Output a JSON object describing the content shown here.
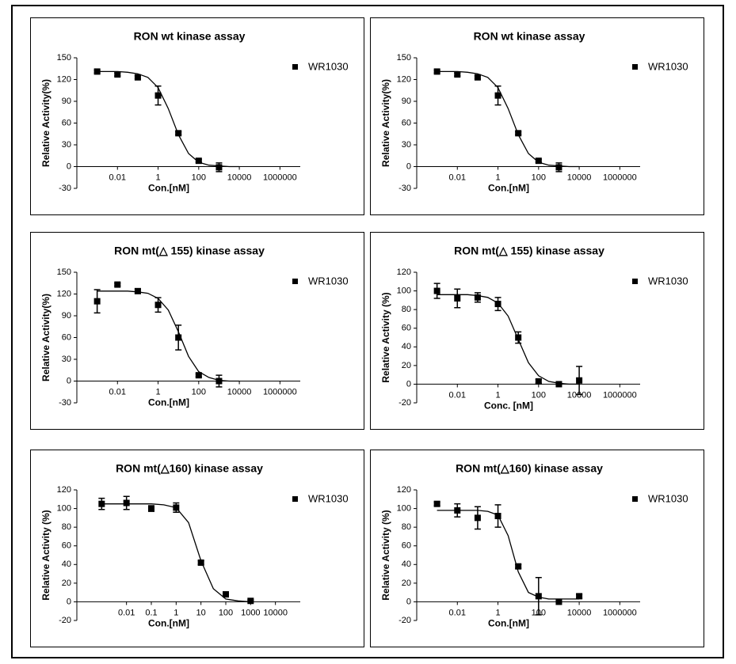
{
  "chart_data": [
    {
      "type": "scatter",
      "title": "RON wt kinase assay",
      "x_label": "Con.[nM]",
      "y_label": "Relative Activity(%)",
      "xscale": "log",
      "xlim": [
        0.0001,
        10000000
      ],
      "xticks": [
        0.01,
        1,
        100,
        10000,
        1000000
      ],
      "ylim": [
        -30,
        150
      ],
      "yticks": [
        -30,
        0,
        30,
        60,
        90,
        120,
        150
      ],
      "x": [
        0.001,
        0.01,
        0.1,
        1,
        10,
        100,
        1000
      ],
      "series": [
        {
          "name": "WR1030",
          "color": "#000000",
          "values": [
            131,
            127,
            123,
            98,
            46,
            8,
            -1
          ],
          "errors": [
            2,
            2,
            2,
            13,
            2,
            2,
            6
          ]
        }
      ],
      "fit": {
        "x": [
          0.001,
          0.00316,
          0.01,
          0.0316,
          0.1,
          0.316,
          1,
          3.16,
          10,
          31.6,
          100,
          316,
          1000,
          3162,
          10000
        ],
        "values": [
          131,
          131,
          131,
          130,
          128,
          123,
          109,
          80,
          44,
          18,
          6,
          2,
          1,
          0,
          0
        ]
      }
    },
    {
      "type": "scatter",
      "title": "RON wt kinase assay",
      "x_label": "Con.[nM]",
      "y_label": "Relative Activity(%)",
      "xscale": "log",
      "xlim": [
        0.0001,
        10000000
      ],
      "xticks": [
        0.01,
        1,
        100,
        10000,
        1000000
      ],
      "ylim": [
        -30,
        150
      ],
      "yticks": [
        -30,
        0,
        30,
        60,
        90,
        120,
        150
      ],
      "x": [
        0.001,
        0.01,
        0.1,
        1,
        10,
        100,
        1000
      ],
      "series": [
        {
          "name": "WR1030",
          "color": "#000000",
          "values": [
            131,
            127,
            123,
            98,
            46,
            8,
            -1
          ],
          "errors": [
            2,
            2,
            2,
            13,
            2,
            2,
            6
          ]
        }
      ],
      "fit": {
        "x": [
          0.001,
          0.00316,
          0.01,
          0.0316,
          0.1,
          0.316,
          1,
          3.16,
          10,
          31.6,
          100,
          316,
          1000,
          3162,
          10000
        ],
        "values": [
          131,
          131,
          131,
          130,
          128,
          123,
          109,
          80,
          44,
          18,
          6,
          2,
          1,
          0,
          0
        ]
      }
    },
    {
      "type": "scatter",
      "title": "RON mt(△ 155) kinase assay",
      "x_label": "Con.[nM]",
      "y_label": "Relative Activity(%)",
      "xscale": "log",
      "xlim": [
        0.0001,
        10000000
      ],
      "xticks": [
        0.01,
        1,
        100,
        10000,
        1000000
      ],
      "ylim": [
        -30,
        150
      ],
      "yticks": [
        -30,
        0,
        30,
        60,
        90,
        120,
        150
      ],
      "x": [
        0.001,
        0.01,
        0.1,
        1,
        10,
        100,
        1000
      ],
      "series": [
        {
          "name": "WR1030",
          "color": "#000000",
          "values": [
            110,
            133,
            124,
            105,
            60,
            8,
            0
          ],
          "errors": [
            16,
            2,
            3,
            10,
            17,
            2,
            8
          ]
        }
      ],
      "fit": {
        "x": [
          0.001,
          0.00316,
          0.01,
          0.0316,
          0.1,
          0.316,
          1,
          3.16,
          10,
          31.6,
          100,
          316,
          1000,
          3162,
          10000
        ],
        "values": [
          124,
          124,
          124,
          124,
          123,
          121,
          114,
          98,
          68,
          34,
          13,
          5,
          1,
          0,
          0
        ]
      }
    },
    {
      "type": "scatter",
      "title": "RON mt(△ 155) kinase assay",
      "x_label": "Conc. [nM]",
      "y_label": "Relative Activity (%)",
      "xscale": "log",
      "xlim": [
        0.0001,
        10000000
      ],
      "xticks": [
        0.01,
        1,
        100,
        10000,
        1000000
      ],
      "ylim": [
        -20,
        120
      ],
      "yticks": [
        -20,
        0,
        20,
        40,
        60,
        80,
        100,
        120
      ],
      "x": [
        0.001,
        0.01,
        0.1,
        1,
        10,
        100,
        1000,
        10000
      ],
      "series": [
        {
          "name": "WR1030",
          "color": "#000000",
          "values": [
            100,
            92,
            93,
            86,
            50,
            3,
            0,
            4
          ],
          "errors": [
            8,
            10,
            5,
            7,
            6,
            2,
            1,
            15
          ]
        }
      ],
      "fit": {
        "x": [
          0.001,
          0.00316,
          0.01,
          0.0316,
          0.1,
          0.316,
          1,
          3.16,
          10,
          31.6,
          100,
          316,
          1000,
          3162,
          10000
        ],
        "values": [
          96,
          96,
          96,
          96,
          95,
          93,
          87,
          73,
          48,
          23,
          9,
          3,
          1,
          0,
          0
        ]
      }
    },
    {
      "type": "scatter",
      "title": "RON mt(△160) kinase assay",
      "x_label": "Con.[nM]",
      "y_label": "Relative Activity (%)",
      "xscale": "log",
      "xlim": [
        0.0001,
        100000
      ],
      "xticks": [
        0.01,
        0.1,
        1,
        10,
        100,
        1000,
        10000
      ],
      "ylim": [
        -20,
        120
      ],
      "yticks": [
        -20,
        0,
        20,
        40,
        60,
        80,
        100,
        120
      ],
      "x": [
        0.001,
        0.01,
        0.1,
        1,
        10,
        100,
        1000
      ],
      "series": [
        {
          "name": "WR1030",
          "color": "#000000",
          "values": [
            105,
            106,
            100,
            101,
            42,
            8,
            1
          ],
          "errors": [
            6,
            7,
            3,
            5,
            2,
            2,
            1
          ]
        }
      ],
      "fit": {
        "x": [
          0.001,
          0.00316,
          0.01,
          0.0316,
          0.1,
          0.316,
          1,
          3.16,
          10,
          31.6,
          100,
          316,
          1000
        ],
        "values": [
          105,
          105,
          105,
          105,
          105,
          104,
          101,
          85,
          44,
          14,
          3,
          1,
          0
        ]
      }
    },
    {
      "type": "scatter",
      "title": "RON mt(△160) kinase assay",
      "x_label": "Con.[nM]",
      "y_label": "Relative Activity (%)",
      "xscale": "log",
      "xlim": [
        0.0001,
        10000000
      ],
      "xticks": [
        0.01,
        1,
        100,
        10000,
        1000000
      ],
      "ylim": [
        -20,
        120
      ],
      "yticks": [
        -20,
        0,
        20,
        40,
        60,
        80,
        100,
        120
      ],
      "x": [
        0.001,
        0.01,
        0.1,
        1,
        10,
        100,
        1000,
        10000
      ],
      "series": [
        {
          "name": "WR1030",
          "color": "#000000",
          "values": [
            105,
            98,
            90,
            92,
            38,
            6,
            0,
            6
          ],
          "errors": [
            2,
            7,
            12,
            12,
            2,
            20,
            1,
            2
          ]
        }
      ],
      "fit": {
        "x": [
          0.001,
          0.00316,
          0.01,
          0.0316,
          0.1,
          0.316,
          1,
          3.16,
          10,
          31.6,
          100,
          316,
          1000,
          3162,
          10000
        ],
        "values": [
          98,
          98,
          98,
          98,
          98,
          97,
          93,
          71,
          32,
          10,
          5,
          3,
          3,
          3,
          3
        ]
      }
    }
  ]
}
